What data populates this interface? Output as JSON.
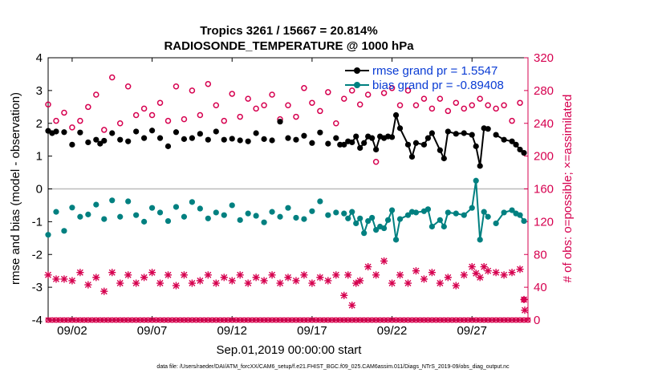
{
  "chart_data": {
    "type": "line",
    "title": "Tropics 3261 / 15667 = 20.814%",
    "subtitle": "RADIOSONDE_TEMPERATURE @ 1000 hPa",
    "xlabel": "Sep.01,2019 00:00:00 start",
    "ylabel_left": "rmse and bias (model - observation)",
    "ylabel_right": "# of obs: o=possible; ×=assimilated",
    "footnote": "data file: /Users/raeder/DAI/ATM_forcXX/CAM6_setup/f.e21.FHIST_BGC.f09_025.CAM6assim.011/Diags_NTrS_2019-09/obs_diag_output.nc",
    "xlim": [
      0.5,
      30.5
    ],
    "ylim_left": [
      -4,
      4
    ],
    "ylim_right": [
      0,
      320
    ],
    "xticks": [
      {
        "x": 2,
        "label": "09/02"
      },
      {
        "x": 7,
        "label": "09/07"
      },
      {
        "x": 12,
        "label": "09/12"
      },
      {
        "x": 17,
        "label": "09/17"
      },
      {
        "x": 22,
        "label": "09/22"
      },
      {
        "x": 27,
        "label": "09/27"
      }
    ],
    "yticks_left": [
      4,
      3,
      2,
      1,
      0,
      -1,
      -2,
      -3,
      -4
    ],
    "yticks_right": [
      320,
      280,
      240,
      200,
      160,
      120,
      80,
      40,
      0
    ],
    "legend": [
      {
        "label": "rmse grand pr = 1.5547",
        "color": "#000000"
      },
      {
        "label": "bias grand pr = -0.89408",
        "color": "#008080"
      }
    ],
    "colors": {
      "rmse": "#000000",
      "bias": "#008080",
      "obs": "#d6004f",
      "zero_line": "#bbbbbb",
      "legend_text": "#0a3cd4"
    },
    "series": [
      {
        "name": "rmse",
        "axis": "left",
        "points": [
          [
            0.5,
            1.77
          ],
          [
            0.75,
            1.7
          ],
          [
            1.0,
            1.75
          ],
          [
            1.5,
            1.73
          ],
          [
            2.0,
            1.35
          ],
          [
            2.5,
            1.72
          ],
          [
            3.0,
            1.42
          ],
          [
            3.5,
            1.5
          ],
          [
            3.75,
            1.38
          ],
          [
            4.0,
            1.47
          ],
          [
            4.5,
            1.7
          ],
          [
            5.0,
            1.5
          ],
          [
            5.5,
            1.45
          ],
          [
            6.0,
            1.75
          ],
          [
            6.5,
            1.55
          ],
          [
            7.0,
            1.78
          ],
          [
            7.5,
            1.55
          ],
          [
            8.0,
            1.3
          ],
          [
            8.5,
            1.73
          ],
          [
            9.0,
            1.52
          ],
          [
            9.5,
            1.55
          ],
          [
            10.0,
            1.68
          ],
          [
            10.5,
            1.5
          ],
          [
            11.0,
            1.75
          ],
          [
            11.5,
            1.5
          ],
          [
            12.0,
            1.53
          ],
          [
            12.5,
            1.48
          ],
          [
            13.0,
            1.45
          ],
          [
            13.5,
            1.7
          ],
          [
            14.0,
            1.52
          ],
          [
            14.5,
            1.48
          ],
          [
            15.0,
            2.05
          ],
          [
            15.5,
            1.55
          ],
          [
            16.0,
            1.5
          ],
          [
            16.5,
            1.62
          ],
          [
            17.0,
            1.4
          ],
          [
            17.5,
            1.72
          ],
          [
            18.0,
            1.38
          ],
          [
            18.5,
            1.55
          ],
          [
            18.75,
            1.35
          ],
          [
            19.0,
            1.35
          ]
        ],
        "line_points": [
          [
            19.25,
            1.45
          ],
          [
            19.5,
            1.42
          ],
          [
            19.75,
            1.6
          ],
          [
            20.0,
            1.25
          ],
          [
            20.25,
            1.4
          ],
          [
            20.5,
            1.6
          ],
          [
            20.75,
            1.55
          ],
          [
            21.0,
            1.2
          ],
          [
            21.25,
            1.6
          ],
          [
            21.5,
            1.55
          ],
          [
            21.75,
            1.6
          ],
          [
            22.0,
            1.58
          ],
          [
            22.25,
            2.25
          ],
          [
            22.5,
            1.85
          ],
          [
            23.0,
            1.35
          ],
          [
            23.25,
            0.98
          ],
          [
            23.5,
            1.4
          ],
          [
            24.0,
            1.35
          ],
          [
            24.25,
            1.55
          ],
          [
            24.5,
            1.7
          ],
          [
            25.0,
            1.18
          ],
          [
            25.25,
            0.93
          ],
          [
            25.5,
            1.75
          ],
          [
            26.0,
            1.68
          ],
          [
            26.5,
            1.7
          ],
          [
            27.0,
            1.65
          ],
          [
            27.25,
            1.3
          ],
          [
            27.5,
            0.7
          ],
          [
            27.75,
            1.85
          ],
          [
            28.0,
            1.83
          ]
        ],
        "line_points_end": [
          [
            28.5,
            1.65
          ],
          [
            29.0,
            1.5
          ],
          [
            29.5,
            1.45
          ],
          [
            29.75,
            1.35
          ],
          [
            30.0,
            1.2
          ],
          [
            30.25,
            1.1
          ]
        ]
      },
      {
        "name": "bias",
        "axis": "left",
        "points": [
          [
            0.5,
            -1.4
          ],
          [
            1.0,
            -0.7
          ],
          [
            1.5,
            -1.28
          ],
          [
            2.0,
            -0.57
          ],
          [
            2.5,
            -0.85
          ],
          [
            3.0,
            -0.78
          ],
          [
            3.5,
            -0.48
          ],
          [
            4.0,
            -0.92
          ],
          [
            4.5,
            -0.35
          ],
          [
            5.0,
            -0.85
          ],
          [
            5.5,
            -0.38
          ],
          [
            6.0,
            -0.8
          ],
          [
            6.5,
            -1.0
          ],
          [
            7.0,
            -0.58
          ],
          [
            7.5,
            -0.72
          ],
          [
            8.0,
            -0.98
          ],
          [
            8.5,
            -0.55
          ],
          [
            9.0,
            -0.85
          ],
          [
            9.5,
            -0.4
          ],
          [
            10.0,
            -0.6
          ],
          [
            10.5,
            -0.9
          ],
          [
            11.0,
            -0.72
          ],
          [
            11.5,
            -0.8
          ],
          [
            12.0,
            -0.5
          ],
          [
            12.5,
            -0.95
          ],
          [
            13.0,
            -0.75
          ],
          [
            13.5,
            -0.82
          ],
          [
            14.0,
            -1.02
          ],
          [
            14.5,
            -0.7
          ],
          [
            15.0,
            -0.85
          ],
          [
            15.5,
            -0.58
          ],
          [
            16.0,
            -0.88
          ],
          [
            16.5,
            -0.92
          ],
          [
            17.0,
            -0.68
          ],
          [
            17.5,
            -0.38
          ],
          [
            18.0,
            -0.8
          ],
          [
            18.5,
            -0.72
          ],
          [
            19.0,
            -0.75
          ]
        ],
        "line_points": [
          [
            19.25,
            -0.9
          ],
          [
            19.5,
            -0.7
          ],
          [
            19.75,
            -1.05
          ],
          [
            20.0,
            -0.9
          ],
          [
            20.25,
            -1.35
          ],
          [
            20.5,
            -0.98
          ],
          [
            20.75,
            -0.88
          ],
          [
            21.0,
            -1.25
          ],
          [
            21.25,
            -1.15
          ],
          [
            21.5,
            -1.2
          ],
          [
            21.75,
            -0.95
          ],
          [
            22.0,
            -0.65
          ],
          [
            22.25,
            -1.55
          ],
          [
            22.5,
            -0.92
          ],
          [
            23.0,
            -0.8
          ],
          [
            23.25,
            -0.7
          ],
          [
            23.5,
            -0.72
          ],
          [
            24.0,
            -0.68
          ],
          [
            24.25,
            -0.62
          ],
          [
            24.5,
            -1.15
          ],
          [
            25.0,
            -0.95
          ],
          [
            25.25,
            -1.15
          ],
          [
            25.5,
            -0.72
          ],
          [
            26.0,
            -0.75
          ],
          [
            26.5,
            -0.8
          ],
          [
            27.0,
            -0.58
          ],
          [
            27.25,
            0.25
          ],
          [
            27.5,
            -1.55
          ],
          [
            27.75,
            -0.7
          ],
          [
            28.0,
            -0.85
          ]
        ],
        "line_points_end": [
          [
            28.5,
            -1.05
          ],
          [
            29.0,
            -0.72
          ],
          [
            29.5,
            -0.65
          ],
          [
            29.75,
            -0.75
          ],
          [
            30.0,
            -0.8
          ],
          [
            30.25,
            -0.98
          ]
        ]
      },
      {
        "name": "possible",
        "axis": "right",
        "marker": "o",
        "points": [
          [
            0.5,
            263
          ],
          [
            1.0,
            243
          ],
          [
            1.5,
            253
          ],
          [
            2.0,
            235
          ],
          [
            2.5,
            243
          ],
          [
            3.0,
            260
          ],
          [
            3.5,
            275
          ],
          [
            4.0,
            232
          ],
          [
            4.5,
            296
          ],
          [
            5.0,
            240
          ],
          [
            5.5,
            285
          ],
          [
            6.0,
            250
          ],
          [
            6.5,
            258
          ],
          [
            7.0,
            250
          ],
          [
            7.5,
            265
          ],
          [
            8.0,
            243
          ],
          [
            8.5,
            285
          ],
          [
            9.0,
            245
          ],
          [
            9.5,
            280
          ],
          [
            10.0,
            250
          ],
          [
            10.5,
            288
          ],
          [
            11.0,
            262
          ],
          [
            11.5,
            243
          ],
          [
            12.0,
            276
          ],
          [
            12.5,
            248
          ],
          [
            13.0,
            270
          ],
          [
            13.5,
            258
          ],
          [
            14.0,
            262
          ],
          [
            14.5,
            275
          ],
          [
            15.0,
            245
          ],
          [
            15.5,
            262
          ],
          [
            16.0,
            248
          ],
          [
            16.5,
            283
          ],
          [
            17.0,
            265
          ],
          [
            17.5,
            255
          ],
          [
            18.0,
            278
          ],
          [
            18.5,
            240
          ],
          [
            19.0,
            270
          ],
          [
            19.5,
            280
          ],
          [
            20.0,
            263
          ],
          [
            20.5,
            275
          ],
          [
            21.0,
            193
          ],
          [
            21.5,
            277
          ],
          [
            22.0,
            283
          ],
          [
            22.5,
            262
          ],
          [
            23.0,
            280
          ],
          [
            23.5,
            262
          ],
          [
            24.0,
            270
          ],
          [
            24.5,
            258
          ],
          [
            25.0,
            270
          ],
          [
            25.5,
            255
          ],
          [
            26.0,
            265
          ],
          [
            26.5,
            258
          ],
          [
            27.0,
            262
          ],
          [
            27.5,
            270
          ],
          [
            28.0,
            262
          ],
          [
            28.5,
            258
          ],
          [
            29.0,
            262
          ],
          [
            29.5,
            243
          ],
          [
            30.0,
            265
          ],
          [
            30.25,
            25
          ]
        ]
      },
      {
        "name": "assimilated",
        "axis": "right",
        "marker": "x",
        "points": [
          [
            0.5,
            55
          ],
          [
            1.0,
            50
          ],
          [
            1.5,
            50
          ],
          [
            2.0,
            48
          ],
          [
            2.5,
            58
          ],
          [
            3.0,
            43
          ],
          [
            3.5,
            52
          ],
          [
            4.0,
            35
          ],
          [
            4.5,
            58
          ],
          [
            5.0,
            45
          ],
          [
            5.5,
            55
          ],
          [
            6.0,
            45
          ],
          [
            6.5,
            52
          ],
          [
            7.0,
            58
          ],
          [
            7.5,
            45
          ],
          [
            8.0,
            55
          ],
          [
            8.5,
            42
          ],
          [
            9.0,
            55
          ],
          [
            9.5,
            45
          ],
          [
            10.0,
            48
          ],
          [
            10.5,
            55
          ],
          [
            11.0,
            45
          ],
          [
            11.5,
            52
          ],
          [
            12.0,
            48
          ],
          [
            12.5,
            55
          ],
          [
            13.0,
            45
          ],
          [
            13.5,
            52
          ],
          [
            14.0,
            48
          ],
          [
            14.5,
            55
          ],
          [
            15.0,
            45
          ],
          [
            15.5,
            52
          ],
          [
            16.0,
            48
          ],
          [
            16.5,
            55
          ],
          [
            17.0,
            45
          ],
          [
            17.5,
            52
          ],
          [
            18.0,
            48
          ],
          [
            18.5,
            55
          ],
          [
            19.0,
            30
          ],
          [
            19.25,
            55
          ],
          [
            19.5,
            18
          ],
          [
            19.75,
            45
          ],
          [
            20.0,
            48
          ],
          [
            20.5,
            65
          ],
          [
            21.0,
            55
          ],
          [
            21.5,
            72
          ],
          [
            22.0,
            45
          ],
          [
            22.5,
            55
          ],
          [
            23.0,
            45
          ],
          [
            23.5,
            60
          ],
          [
            24.0,
            50
          ],
          [
            24.5,
            58
          ],
          [
            25.0,
            45
          ],
          [
            25.5,
            52
          ],
          [
            26.0,
            42
          ],
          [
            26.5,
            55
          ],
          [
            27.0,
            65
          ],
          [
            27.25,
            57
          ],
          [
            27.5,
            52
          ],
          [
            27.75,
            65
          ],
          [
            28.0,
            60
          ],
          [
            28.5,
            58
          ],
          [
            29.0,
            55
          ],
          [
            29.5,
            58
          ],
          [
            30.0,
            62
          ],
          [
            30.25,
            25
          ],
          [
            30.3,
            12
          ]
        ]
      }
    ]
  }
}
